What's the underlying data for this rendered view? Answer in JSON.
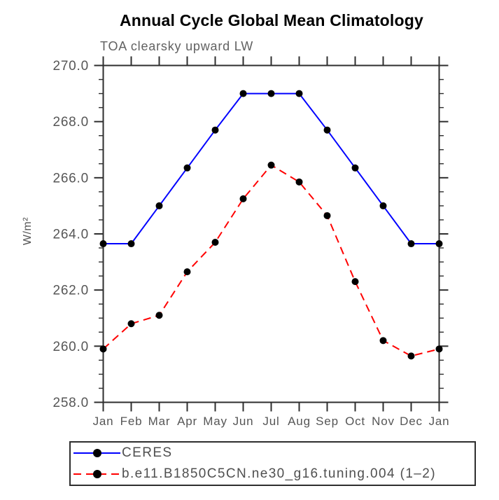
{
  "chart_data": {
    "type": "line",
    "title": "Annual Cycle Global Mean Climatology",
    "subtitle": "TOA clearsky upward LW",
    "ylabel": "W/m²",
    "x_categories": [
      "Jan",
      "Feb",
      "Mar",
      "Apr",
      "May",
      "Jun",
      "Jul",
      "Aug",
      "Sep",
      "Oct",
      "Nov",
      "Dec",
      "Jan"
    ],
    "ylim": [
      258.0,
      270.0
    ],
    "ytick_major_values": [
      258.0,
      260.0,
      262.0,
      264.0,
      266.0,
      268.0,
      270.0
    ],
    "ytick_major_labels": [
      "258.0",
      "260.0",
      "262.0",
      "264.0",
      "266.0",
      "268.0",
      "270.0"
    ],
    "ytick_minor_step": 0.5,
    "grid": false,
    "legend_position": "bottom",
    "axis_color": "#2e2e2e",
    "tick_label_color": "#565656",
    "marker_color": "#000000",
    "series": [
      {
        "name": "CERES",
        "color": "#0000ff",
        "style": "solid",
        "marker": "circle",
        "values": [
          263.65,
          263.65,
          265.0,
          266.35,
          267.7,
          269.0,
          269.0,
          269.0,
          267.7,
          266.35,
          265.0,
          263.65,
          263.65
        ]
      },
      {
        "name": "b.e11.B1850C5CN.ne30_g16.tuning.004 (1–2)",
        "color": "#ff0000",
        "style": "dashed",
        "marker": "circle",
        "values": [
          259.9,
          260.8,
          261.1,
          262.65,
          263.7,
          265.25,
          266.45,
          265.85,
          264.65,
          262.3,
          260.2,
          259.65,
          259.9
        ]
      }
    ]
  }
}
